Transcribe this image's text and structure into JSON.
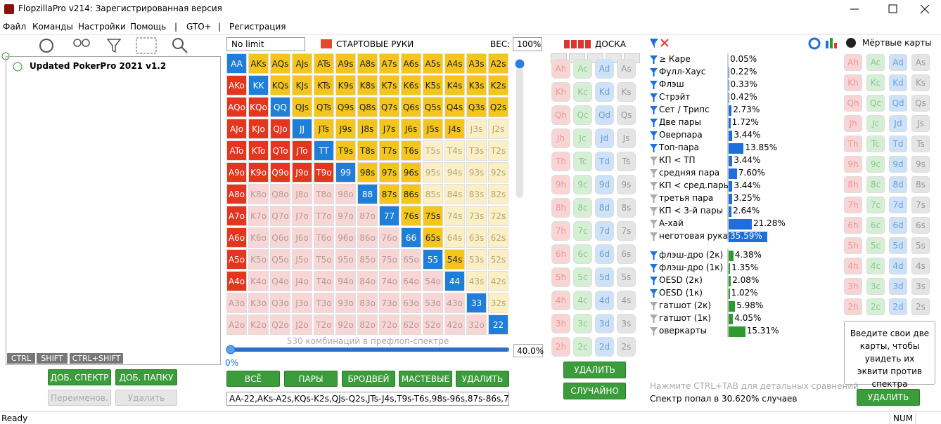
{
  "window": {
    "title": "FlopzillaPro v214: Зарегистрированная версия",
    "menu": [
      "Файл",
      "Команды",
      "Настройки",
      "Помощь",
      "|",
      "GTO+",
      "|",
      "Регистрация"
    ]
  },
  "left_panel": {
    "tree_item": "Updated PokerPro 2021 v1.2",
    "modifier_keys": [
      "CTRL",
      "SHIFT",
      "CTRL+SHIFT"
    ],
    "buttons": [
      "ДОБ. СПЕКТР",
      "ДОБ. ПАПКУ",
      "Переименов.",
      "Удалить"
    ]
  },
  "hands": {
    "game": "No limit",
    "title": "СТАРТОВЫЕ РУКИ",
    "weight_label": "ВЕС:",
    "weight": "100%",
    "rows": [
      [
        "AA",
        "AKs",
        "AQs",
        "AJs",
        "ATs",
        "A9s",
        "A8s",
        "A7s",
        "A6s",
        "A5s",
        "A4s",
        "A3s",
        "A2s"
      ],
      [
        "AKo",
        "KK",
        "KQs",
        "KJs",
        "KTs",
        "K9s",
        "K8s",
        "K7s",
        "K6s",
        "K5s",
        "K4s",
        "K3s",
        "K2s"
      ],
      [
        "AQo",
        "KQo",
        "QQ",
        "QJs",
        "QTs",
        "Q9s",
        "Q8s",
        "Q7s",
        "Q6s",
        "Q5s",
        "Q4s",
        "Q3s",
        "Q2s"
      ],
      [
        "AJo",
        "KJo",
        "QJo",
        "JJ",
        "JTs",
        "J9s",
        "J8s",
        "J7s",
        "J6s",
        "J5s",
        "J4s",
        "J3s",
        "J2s"
      ],
      [
        "ATo",
        "KTo",
        "QTo",
        "JTo",
        "TT",
        "T9s",
        "T8s",
        "T7s",
        "T6s",
        "T5s",
        "T4s",
        "T3s",
        "T2s"
      ],
      [
        "A9o",
        "K9o",
        "Q9o",
        "J9o",
        "T9o",
        "99",
        "98s",
        "97s",
        "96s",
        "95s",
        "94s",
        "93s",
        "92s"
      ],
      [
        "A8o",
        "K8o",
        "Q8o",
        "J8o",
        "T8o",
        "98o",
        "88",
        "87s",
        "86s",
        "85s",
        "84s",
        "83s",
        "82s"
      ],
      [
        "A7o",
        "K7o",
        "Q7o",
        "J7o",
        "T7o",
        "97o",
        "87o",
        "77",
        "76s",
        "75s",
        "74s",
        "73s",
        "72s"
      ],
      [
        "A6o",
        "K6o",
        "Q6o",
        "J6o",
        "T6o",
        "96o",
        "86o",
        "76o",
        "66",
        "65s",
        "64s",
        "63s",
        "62s"
      ],
      [
        "A5o",
        "K5o",
        "Q5o",
        "J5o",
        "T5o",
        "95o",
        "85o",
        "75o",
        "65o",
        "55",
        "54s",
        "53s",
        "52s"
      ],
      [
        "A4o",
        "K4o",
        "Q4o",
        "J4o",
        "T4o",
        "94o",
        "84o",
        "74o",
        "64o",
        "54o",
        "44",
        "43s",
        "42s"
      ],
      [
        "A3o",
        "K3o",
        "Q3o",
        "J3o",
        "T3o",
        "93o",
        "83o",
        "73o",
        "63o",
        "53o",
        "43o",
        "33",
        "32s"
      ],
      [
        "A2o",
        "K2o",
        "Q2o",
        "J2o",
        "T2o",
        "92o",
        "82o",
        "72o",
        "62o",
        "52o",
        "42o",
        "32o",
        "22"
      ]
    ],
    "selected": [
      "1111111111111",
      "1111111111111",
      "1111111111111",
      "1111111111100",
      "1111111110000",
      "1111111110000",
      "1000001110000",
      "1000000111000",
      "1000000011000",
      "1000000001100",
      "1000000000100",
      "0000000000010",
      "0000000000001"
    ],
    "combos_text": "530 комбинаций в префлоп-спектре",
    "slider_min": "0%",
    "slider_value": "40.0%",
    "buttons": [
      "ВСЁ",
      "ПАРЫ",
      "БРОДВЕЙ",
      "МАСТЕВЫЕ",
      "УДАЛИТЬ"
    ],
    "range_text": "AA-22,AKs-A2s,KQs-K2s,QJs-Q2s,JTs-J4s,T9s-T6s,98s-96s,87s-86s,7"
  },
  "board": {
    "title": "ДОСКА",
    "cards": [
      [
        "Ah",
        "Ac",
        "Ad",
        "As"
      ],
      [
        "Kh",
        "Kc",
        "Kd",
        "Ks"
      ],
      [
        "Qh",
        "Qc",
        "Qd",
        "Qs"
      ],
      [
        "Jh",
        "Jc",
        "Jd",
        "Js"
      ],
      [
        "Th",
        "Tc",
        "Td",
        "Ts"
      ],
      [
        "9h",
        "9c",
        "9d",
        "9s"
      ],
      [
        "8h",
        "8c",
        "8d",
        "8s"
      ],
      [
        "7h",
        "7c",
        "7d",
        "7s"
      ],
      [
        "6h",
        "6c",
        "6d",
        "6s"
      ],
      [
        "5h",
        "5c",
        "5d",
        "5s"
      ],
      [
        "4h",
        "4c",
        "4d",
        "4s"
      ],
      [
        "3h",
        "3c",
        "3d",
        "3s"
      ],
      [
        "2h",
        "2c",
        "2d",
        "2s"
      ]
    ],
    "buttons": [
      "УДАЛИТЬ",
      "СЛУЧАЙНО"
    ]
  },
  "stats": {
    "groups": [
      {
        "color": "#1e6fd9",
        "items": [
          {
            "label": "≥ Каре",
            "value": 0.05,
            "value_label": "0.05%",
            "active": true
          },
          {
            "label": "Фулл-Хаус",
            "value": 0.22,
            "value_label": "0.22%",
            "active": true
          },
          {
            "label": "Флэш",
            "value": 0.33,
            "value_label": "0.33%",
            "active": true
          },
          {
            "label": "Стрэйт",
            "value": 0.42,
            "value_label": "0.42%",
            "active": true
          },
          {
            "label": "Сет / Трипс",
            "value": 2.73,
            "value_label": "2.73%",
            "active": true
          },
          {
            "label": "Две пары",
            "value": 1.72,
            "value_label": "1.72%",
            "active": true
          },
          {
            "label": "Оверпара",
            "value": 3.44,
            "value_label": "3.44%",
            "active": true
          },
          {
            "label": "Топ-пара",
            "value": 13.85,
            "value_label": "13.85%",
            "active": true
          },
          {
            "label": "КП < ТП",
            "value": 3.44,
            "value_label": "3.44%",
            "active": false
          },
          {
            "label": "средняя пара",
            "value": 7.6,
            "value_label": "7.60%",
            "active": false
          },
          {
            "label": "КП < сред.пары",
            "value": 3.44,
            "value_label": "3.44%",
            "active": false
          },
          {
            "label": "третья пара",
            "value": 3.25,
            "value_label": "3.25%",
            "active": false
          },
          {
            "label": "КП < 3-й пары",
            "value": 2.64,
            "value_label": "2.64%",
            "active": false
          },
          {
            "label": "А-хай",
            "value": 21.28,
            "value_label": "21.28%",
            "active": false
          },
          {
            "label": "неготовая рука",
            "value": 35.59,
            "value_label": "35.59%",
            "active": false
          }
        ]
      },
      {
        "color": "#2e9a2e",
        "items": [
          {
            "label": "флэш-дро (2к)",
            "value": 4.38,
            "value_label": "4.38%",
            "active": true
          },
          {
            "label": "флэш-дро (1к)",
            "value": 1.35,
            "value_label": "1.35%",
            "active": true
          },
          {
            "label": "OESD (2к)",
            "value": 2.08,
            "value_label": "2.08%",
            "active": true
          },
          {
            "label": "OESD (1к)",
            "value": 1.02,
            "value_label": "1.02%",
            "active": true
          },
          {
            "label": "гатшот (2к)",
            "value": 5.98,
            "value_label": "5.98%",
            "active": false
          },
          {
            "label": "гатшот (1к)",
            "value": 4.05,
            "value_label": "4.05%",
            "active": false
          },
          {
            "label": "оверкарты",
            "value": 15.31,
            "value_label": "15.31%",
            "active": false
          }
        ]
      }
    ],
    "hint": "Нажмите CTRL+TAB для детальных сравнений",
    "result": "Спектр попал в 30.620% случаев"
  },
  "dead_cards": {
    "title": "Мёртвые карты",
    "cards": [
      [
        "Ah",
        "Ac",
        "Ad",
        "As"
      ],
      [
        "Kh",
        "Kc",
        "Kd",
        "Ks"
      ],
      [
        "Qh",
        "Qc",
        "Qd",
        "Qs"
      ],
      [
        "Jh",
        "Jc",
        "Jd",
        "Js"
      ],
      [
        "Th",
        "Tc",
        "Td",
        "Ts"
      ],
      [
        "9h",
        "9c",
        "9d",
        "9s"
      ],
      [
        "8h",
        "8c",
        "8d",
        "8s"
      ],
      [
        "7h",
        "7c",
        "7d",
        "7s"
      ],
      [
        "6h",
        "6c",
        "6d",
        "6s"
      ],
      [
        "5h",
        "5c",
        "5d",
        "5s"
      ],
      [
        "4h",
        "4c",
        "4d",
        "4s"
      ],
      [
        "3h",
        "3c",
        "3d",
        "3s"
      ],
      [
        "2h",
        "2c",
        "2d",
        "2s"
      ]
    ],
    "note": "Введите свои две карты, чтобы увидеть их эквити против спектра",
    "button": "УДАЛИТЬ"
  },
  "status": {
    "left": "Ready",
    "right": "NUM"
  }
}
